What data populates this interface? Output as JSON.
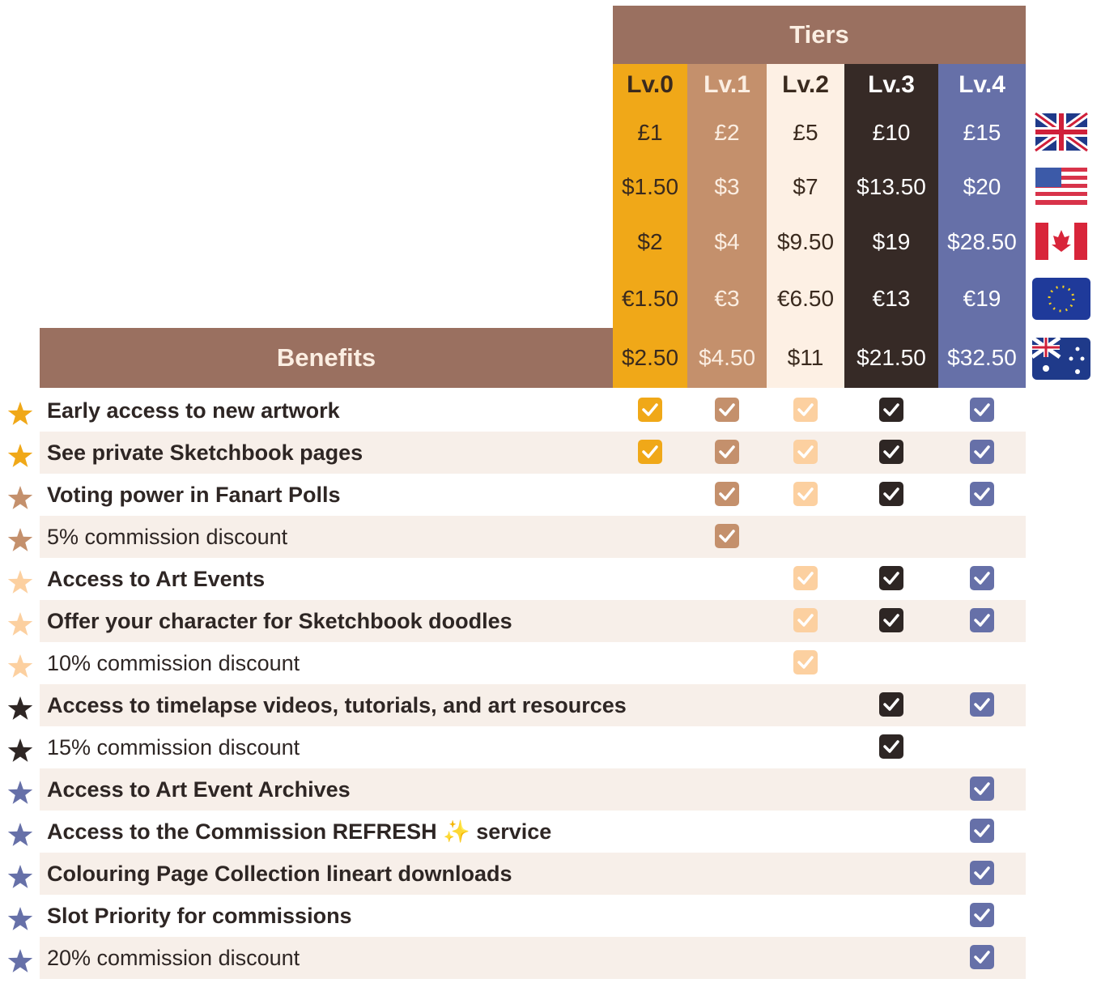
{
  "header": {
    "tiers_title": "Tiers",
    "benefits_title": "Benefits"
  },
  "tiers": [
    {
      "label": "Lv.0",
      "bg": "#f0a818",
      "text": "#3a2a1e",
      "check": "#f0a818"
    },
    {
      "label": "Lv.1",
      "bg": "#c4906c",
      "text": "#fbeee2",
      "check": "#c4906c"
    },
    {
      "label": "Lv.2",
      "bg": "#fdf0e4",
      "text": "#3a2a1e",
      "check": "#fcd0a0"
    },
    {
      "label": "Lv.3",
      "bg": "#362a26",
      "text": "#ffffff",
      "check": "#2e2624"
    },
    {
      "label": "Lv.4",
      "bg": "#6670a8",
      "text": "#ffffff",
      "check": "#6670a8"
    }
  ],
  "prices": [
    [
      "£1",
      "£2",
      "£5",
      "£10",
      "£15"
    ],
    [
      "$1.50",
      "$3",
      "$7",
      "$13.50",
      "$20"
    ],
    [
      "$2",
      "$4",
      "$9.50",
      "$19",
      "$28.50"
    ],
    [
      "€1.50",
      "€3",
      "€6.50",
      "€13",
      "€19"
    ],
    [
      "$2.50",
      "$4.50",
      "$11",
      "$21.50",
      "$32.50"
    ]
  ],
  "benefits": [
    {
      "text": "Early access to new artwork",
      "bold": true,
      "checks": [
        true,
        true,
        true,
        true,
        true
      ]
    },
    {
      "text": "See private Sketchbook pages",
      "bold": true,
      "checks": [
        true,
        true,
        true,
        true,
        true
      ]
    },
    {
      "text": "Voting power in Fanart Polls",
      "bold": true,
      "checks": [
        false,
        true,
        true,
        true,
        true
      ]
    },
    {
      "text": "5% commission discount",
      "bold": false,
      "checks": [
        false,
        true,
        false,
        false,
        false
      ]
    },
    {
      "text": "Access to Art Events",
      "bold": true,
      "checks": [
        false,
        false,
        true,
        true,
        true
      ]
    },
    {
      "text": "Offer your character for Sketchbook doodles",
      "bold": true,
      "checks": [
        false,
        false,
        true,
        true,
        true
      ]
    },
    {
      "text": "10% commission discount",
      "bold": false,
      "checks": [
        false,
        false,
        true,
        false,
        false
      ]
    },
    {
      "text": "Access to timelapse videos, tutorials, and art resources",
      "bold": true,
      "checks": [
        false,
        false,
        false,
        true,
        true
      ]
    },
    {
      "text": "15% commission discount",
      "bold": false,
      "checks": [
        false,
        false,
        false,
        true,
        false
      ]
    },
    {
      "text": "Access to Art Event Archives",
      "bold": true,
      "checks": [
        false,
        false,
        false,
        false,
        true
      ]
    },
    {
      "text": "Access to the Commission REFRESH ✨ service",
      "bold": true,
      "checks": [
        false,
        false,
        false,
        false,
        true
      ]
    },
    {
      "text": "Colouring Page Collection lineart downloads",
      "bold": true,
      "checks": [
        false,
        false,
        false,
        false,
        true
      ]
    },
    {
      "text": "Slot Priority for commissions",
      "bold": true,
      "checks": [
        false,
        false,
        false,
        false,
        true
      ]
    },
    {
      "text": "20% commission discount",
      "bold": false,
      "checks": [
        false,
        false,
        false,
        false,
        true
      ]
    }
  ]
}
